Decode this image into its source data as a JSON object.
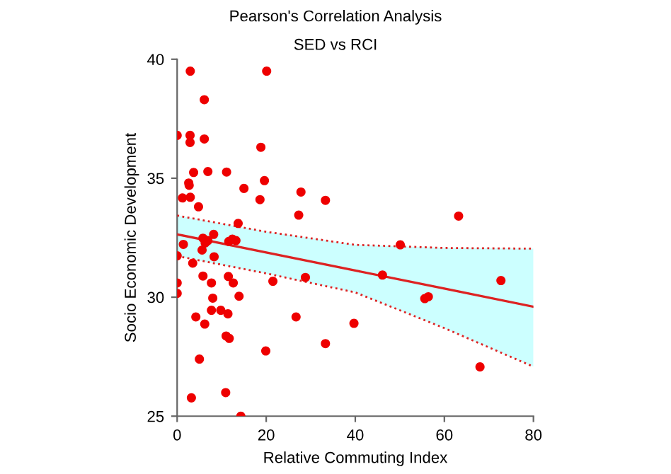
{
  "chart_data": {
    "type": "scatter",
    "title": "Pearson's Correlation Analysis",
    "subtitle": "SED vs RCI",
    "xlabel": "Relative Commuting Index",
    "ylabel": "Socio Economic Development",
    "xlim": [
      0,
      80
    ],
    "ylim": [
      25,
      40
    ],
    "xticks": [
      0,
      20,
      40,
      60,
      80
    ],
    "yticks": [
      25,
      30,
      35,
      40
    ],
    "grid": false,
    "series": [
      {
        "color": "#ee0000",
        "marker": "circle",
        "x": [
          2.95,
          20.1,
          6.1,
          0,
          2.9,
          2.9,
          6.1,
          18.8,
          3.7,
          6.9,
          11.1,
          19.6,
          2.6,
          2.7,
          1.2,
          2.95,
          15,
          18.6,
          27.8,
          33.3,
          4.8,
          27.3,
          13.7,
          8.2,
          5.8,
          6.9,
          6.3,
          1.4,
          5.6,
          11.6,
          12.4,
          13.2,
          0,
          8.3,
          3.5,
          5.8,
          11.5,
          7.7,
          12.6,
          0,
          21.5,
          28.8,
          0,
          8.0,
          13.9,
          4.2,
          7.7,
          9.8,
          11.4,
          6.2,
          26.7,
          11,
          11.7,
          19.9,
          33.3,
          5,
          10.9,
          3.2,
          14.3,
          63.2,
          50.1,
          46.1,
          72.7,
          55.6,
          56.4,
          39.7,
          68
        ],
        "values": [
          39.5,
          39.5,
          38.3,
          36.8,
          36.8,
          36.5,
          36.65,
          36.3,
          35.24,
          35.28,
          35.26,
          34.9,
          34.8,
          34.7,
          34.17,
          34.2,
          34.57,
          34.1,
          34.42,
          34.07,
          33.8,
          33.45,
          33.1,
          32.64,
          32.48,
          32.38,
          32.28,
          32.22,
          31.98,
          32.34,
          32.44,
          32.38,
          31.74,
          31.7,
          31.43,
          30.89,
          30.87,
          30.6,
          30.6,
          30.6,
          30.67,
          30.83,
          30.16,
          29.96,
          30.04,
          29.17,
          29.45,
          29.45,
          29.3,
          28.87,
          29.17,
          28.37,
          28.27,
          27.74,
          28.05,
          27.4,
          25.99,
          25.77,
          25.0,
          33.41,
          32.2,
          30.93,
          30.7,
          29.94,
          30.02,
          28.9,
          27.07
        ]
      },
      {
        "type": "line",
        "color": "#dd2222",
        "x": [
          0,
          20,
          40,
          60,
          80
        ],
        "values": [
          32.64,
          31.88,
          31.12,
          30.36,
          29.6
        ],
        "lower": [
          31.73,
          31.0,
          30.2,
          28.7,
          27.08
        ],
        "upper": [
          33.43,
          32.75,
          32.2,
          32.07,
          32.04
        ]
      },
      {
        "type": "line",
        "color": "#dd2222",
        "line_style": "dotted",
        "x": [
          0,
          20,
          40,
          60,
          80
        ],
        "values": [
          31.73,
          31.0,
          30.2,
          28.7,
          27.08
        ]
      },
      {
        "type": "line",
        "color": "#dd2222",
        "line_style": "dotted",
        "x": [
          0,
          20,
          40,
          60,
          80
        ],
        "values": [
          33.43,
          32.75,
          32.2,
          32.07,
          32.04
        ]
      }
    ]
  }
}
